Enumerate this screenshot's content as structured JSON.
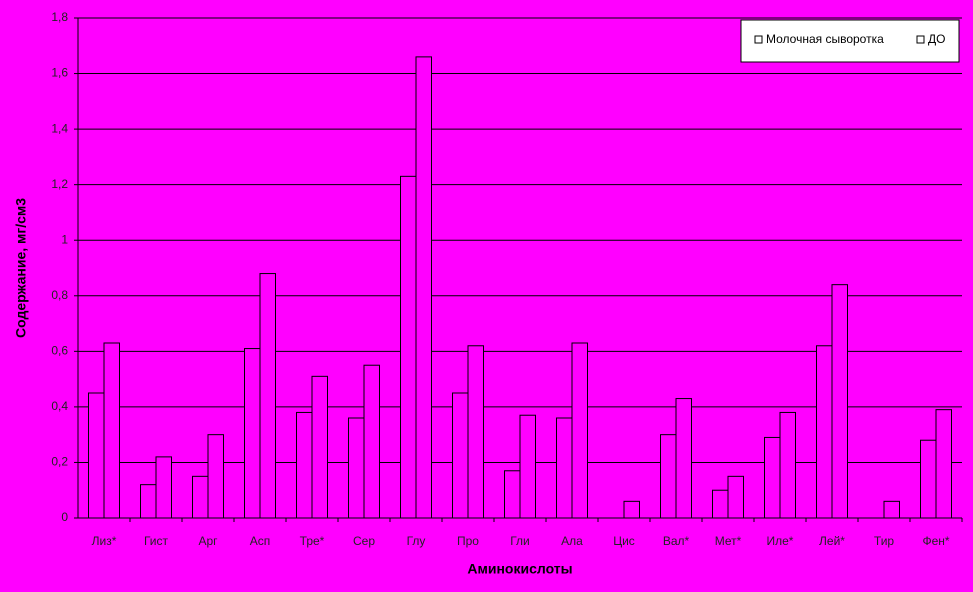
{
  "chart_data": {
    "type": "bar",
    "x_label": "Аминокислоты",
    "y_label": "Содержание, мг/см3",
    "categories": [
      "Лиз*",
      "Гист",
      "Арг",
      "Асп",
      "Тре*",
      "Сер",
      "Глу",
      "Про",
      "Гли",
      "Ала",
      "Цис",
      "Вал*",
      "Мет*",
      "Иле*",
      "Лей*",
      "Тир",
      "Фен*"
    ],
    "series": [
      {
        "name": "Молочная сыворотка",
        "color": "#ff00ff",
        "values": [
          0.45,
          0.12,
          0.15,
          0.61,
          0.38,
          0.36,
          1.23,
          0.45,
          0.17,
          0.36,
          null,
          0.3,
          0.1,
          0.29,
          0.62,
          null,
          0.28
        ]
      },
      {
        "name": "ДО",
        "color": "#ff00ff",
        "values": [
          0.63,
          0.22,
          0.3,
          0.88,
          0.51,
          0.55,
          1.66,
          0.62,
          0.37,
          0.63,
          0.06,
          0.43,
          0.15,
          0.38,
          0.84,
          0.06,
          0.39
        ]
      }
    ],
    "ylim": [
      0,
      1.8
    ],
    "yticks": [
      0,
      {
        "value": 0.2,
        "label": "0,2"
      },
      {
        "value": 0.4,
        "label": "0,4"
      },
      {
        "value": 0.6,
        "label": "0,6"
      },
      {
        "value": 0.8,
        "label": "0,8"
      },
      1,
      {
        "value": 1.2,
        "label": "1,2"
      },
      {
        "value": 1.4,
        "label": "1,4"
      },
      {
        "value": 1.6,
        "label": "1,6"
      },
      {
        "value": 1.8,
        "label": "1,8"
      }
    ],
    "grid": true,
    "legend": "top-right"
  }
}
